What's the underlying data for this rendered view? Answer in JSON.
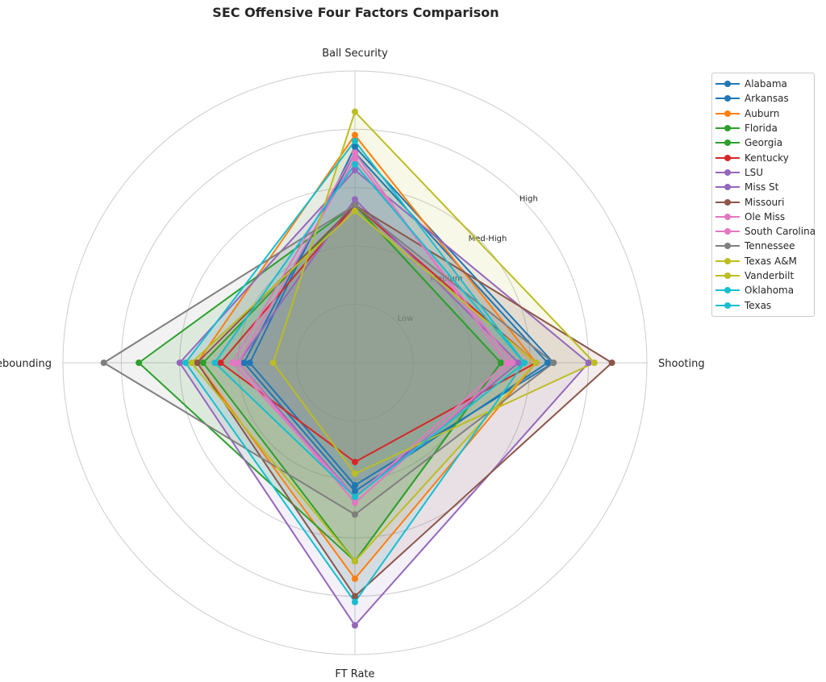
{
  "chart_data": {
    "type": "radar",
    "title": "SEC Offensive Four Factors Comparison",
    "axes": [
      "Ball Security",
      "Shooting",
      "FT Rate",
      "Off Rebounding"
    ],
    "ring_labels": [
      "Low",
      "Medium",
      "Med-High",
      "High"
    ],
    "rlim": [
      0,
      5
    ],
    "legend_position": "upper right, outside plot",
    "grid": true,
    "series": [
      {
        "name": "Alabama",
        "color": "#1f77b4",
        "values": [
          3.7,
          3.4,
          2.1,
          1.8
        ]
      },
      {
        "name": "Arkansas",
        "color": "#1f77b4",
        "values": [
          3.6,
          3.3,
          2.2,
          1.9
        ]
      },
      {
        "name": "Auburn",
        "color": "#ff7f0e",
        "values": [
          3.9,
          3.1,
          3.7,
          2.7
        ]
      },
      {
        "name": "Florida",
        "color": "#2ca02c",
        "values": [
          2.7,
          2.5,
          3.4,
          3.7
        ]
      },
      {
        "name": "Georgia",
        "color": "#2ca02c",
        "values": [
          2.7,
          2.5,
          3.4,
          2.6
        ]
      },
      {
        "name": "Kentucky",
        "color": "#d62728",
        "values": [
          2.7,
          3.1,
          1.7,
          2.3
        ]
      },
      {
        "name": "LSU",
        "color": "#9467bd",
        "values": [
          3.3,
          4.0,
          4.5,
          3.0
        ]
      },
      {
        "name": "Miss St",
        "color": "#9467bd",
        "values": [
          2.8,
          2.8,
          2.3,
          2.0
        ]
      },
      {
        "name": "Missouri",
        "color": "#8c564b",
        "values": [
          2.7,
          4.4,
          4.0,
          2.7
        ]
      },
      {
        "name": "Ole Miss",
        "color": "#e377c2",
        "values": [
          3.6,
          2.6,
          2.3,
          2.1
        ]
      },
      {
        "name": "South Carolina",
        "color": "#e377c2",
        "values": [
          3.5,
          2.7,
          2.4,
          2.0
        ]
      },
      {
        "name": "Tennessee",
        "color": "#7f7f7f",
        "values": [
          2.7,
          3.4,
          2.6,
          4.3
        ]
      },
      {
        "name": "Texas A&M",
        "color": "#bcbd22",
        "values": [
          4.3,
          4.1,
          1.9,
          1.4
        ]
      },
      {
        "name": "Vanderbilt",
        "color": "#bcbd22",
        "values": [
          2.6,
          3.1,
          3.4,
          2.8
        ]
      },
      {
        "name": "Oklahoma",
        "color": "#17becf",
        "values": [
          3.8,
          2.9,
          4.1,
          2.9
        ]
      },
      {
        "name": "Texas",
        "color": "#17becf",
        "values": [
          3.4,
          2.9,
          2.3,
          2.4
        ]
      }
    ]
  }
}
